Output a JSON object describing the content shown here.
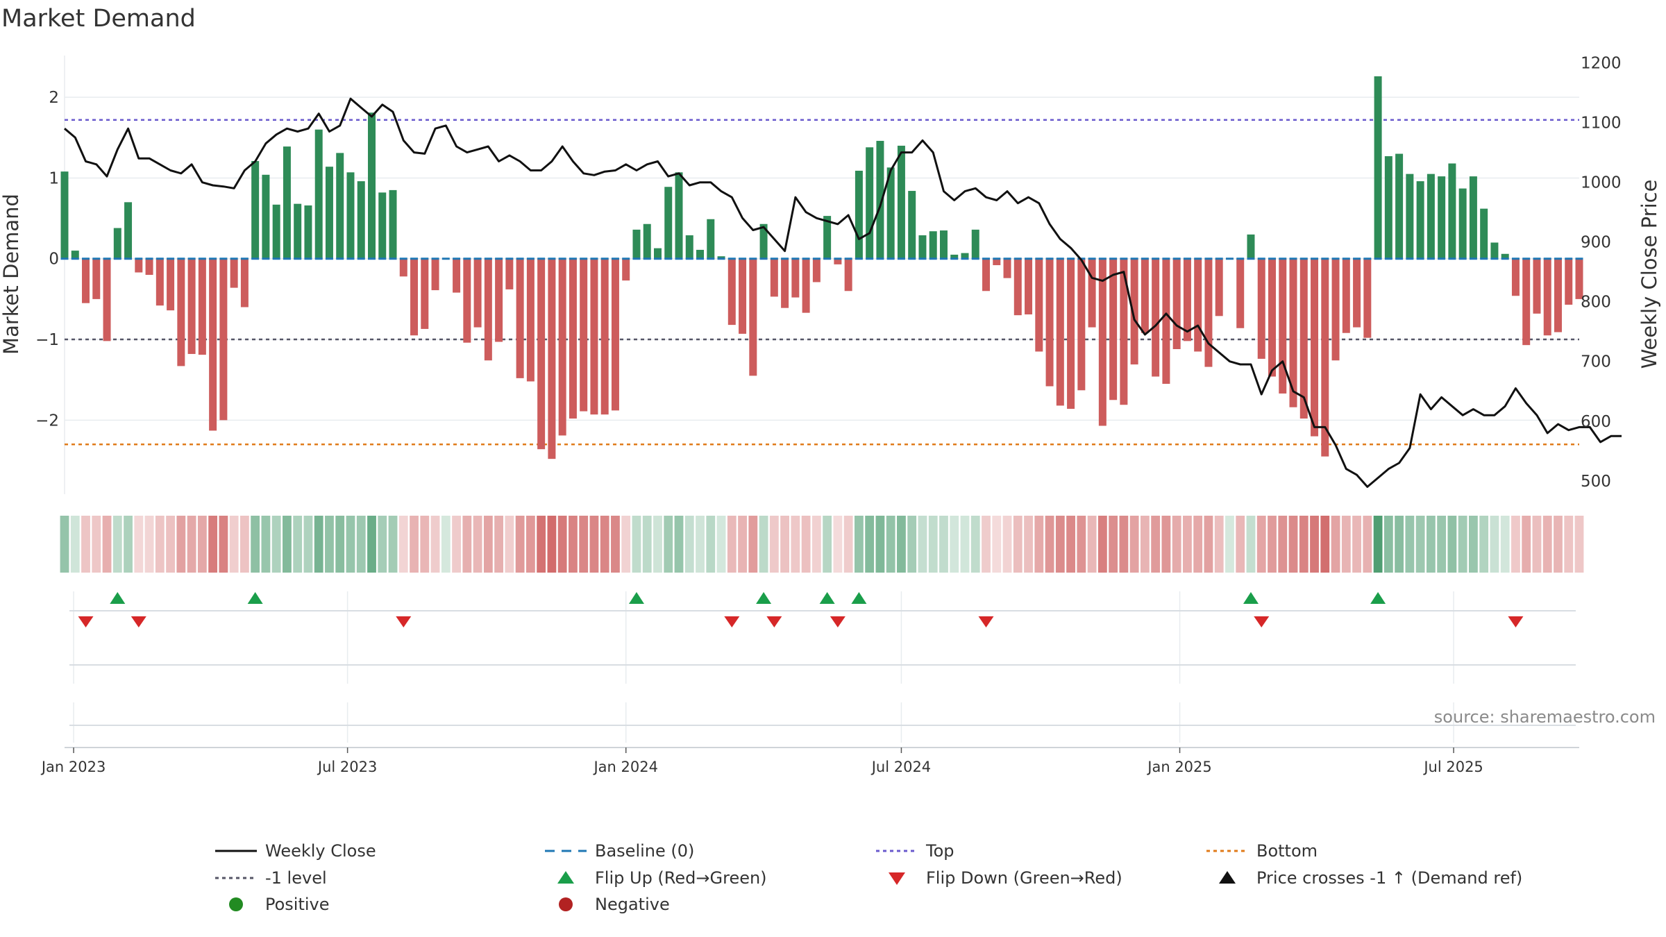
{
  "title": "Market Demand",
  "source": "source: sharemaestro.com",
  "chart_data": {
    "type": "bar",
    "title": "Market Demand",
    "ylabel": "Market Demand",
    "y2label": "Weekly Close Price",
    "ylim": [
      -2.9,
      2.5
    ],
    "y2lim": [
      480,
      1210
    ],
    "yticks": [
      "2",
      "1",
      "0",
      "−1",
      "−2"
    ],
    "y2ticks": [
      "1200",
      "1100",
      "1000",
      "900",
      "800",
      "700",
      "600",
      "500"
    ],
    "x_start": "2022-12-26",
    "x_end": "2025-09-22",
    "xticks": [
      {
        "date": "2023-01-01",
        "label": "Jan 2023"
      },
      {
        "date": "2023-07-01",
        "label": "Jul 2023"
      },
      {
        "date": "2024-01-01",
        "label": "Jan 2024"
      },
      {
        "date": "2024-07-01",
        "label": "Jul 2024"
      },
      {
        "date": "2025-01-01",
        "label": "Jan 2025"
      },
      {
        "date": "2025-07-01",
        "label": "Jul 2025"
      }
    ],
    "first_week": "2022-12-26",
    "top_level": 1.72,
    "bottom_level": -2.3,
    "neg_ref_level": -1.0,
    "colors": {
      "positive": "#2e8b57",
      "negative": "#cd5c5c",
      "price": "#111111",
      "top": "#6a5acd",
      "bottom": "#e07b1a",
      "neg_ref": "#555566",
      "baseline": "#1f77b4",
      "flip_up": "#1a9e4a",
      "flip_down": "#d62728"
    },
    "demand": [
      1.08,
      0.1,
      -0.55,
      -0.5,
      -1.02,
      0.38,
      0.7,
      -0.17,
      -0.2,
      -0.58,
      -0.64,
      -1.33,
      -1.18,
      -1.19,
      -2.13,
      -2.0,
      -0.36,
      -0.6,
      1.21,
      1.04,
      0.67,
      1.39,
      0.68,
      0.66,
      1.6,
      1.14,
      1.31,
      1.07,
      0.96,
      1.81,
      0.82,
      0.85,
      -0.22,
      -0.95,
      -0.87,
      -0.39,
      0,
      -0.42,
      -1.04,
      -0.85,
      -1.26,
      -1.03,
      -0.38,
      -1.48,
      -1.52,
      -2.36,
      -2.48,
      -2.19,
      -1.98,
      -1.89,
      -1.93,
      -1.93,
      -1.88,
      -0.27,
      0.36,
      0.43,
      0.13,
      0.89,
      1.07,
      0.29,
      0.11,
      0.49,
      0.03,
      -0.82,
      -0.93,
      -1.45,
      0.43,
      -0.47,
      -0.61,
      -0.48,
      -0.67,
      -0.29,
      0.53,
      -0.07,
      -0.4,
      1.09,
      1.38,
      1.46,
      1.13,
      1.4,
      0.84,
      0.29,
      0.34,
      0.35,
      0.05,
      0.07,
      0.36,
      -0.4,
      -0.08,
      -0.24,
      -0.7,
      -0.69,
      -1.15,
      -1.58,
      -1.82,
      -1.86,
      -1.63,
      -0.85,
      -2.07,
      -1.75,
      -1.81,
      -1.31,
      -0.92,
      -1.46,
      -1.55,
      -1.12,
      -1.02,
      -1.15,
      -1.34,
      -0.71,
      0,
      -0.86,
      0.3,
      -1.24,
      -1.46,
      -1.67,
      -1.84,
      -1.98,
      -2.2,
      -2.45,
      -1.26,
      -0.92,
      -0.85,
      -0.98,
      2.26,
      1.27,
      1.3,
      1.05,
      0.96,
      1.05,
      1.02,
      1.18,
      0.87,
      1.02,
      0.62,
      0.2,
      0.06,
      -0.46,
      -1.07,
      -0.68,
      -0.95,
      -0.91,
      -0.57,
      -0.5
    ],
    "price": [
      1090,
      1075,
      1035,
      1030,
      1010,
      1055,
      1090,
      1040,
      1040,
      1030,
      1020,
      1015,
      1030,
      1000,
      995,
      993,
      990,
      1020,
      1035,
      1065,
      1080,
      1090,
      1085,
      1090,
      1115,
      1085,
      1095,
      1140,
      1125,
      1110,
      1130,
      1118,
      1070,
      1050,
      1048,
      1090,
      1095,
      1060,
      1050,
      1055,
      1060,
      1035,
      1045,
      1035,
      1020,
      1020,
      1035,
      1060,
      1035,
      1015,
      1012,
      1018,
      1020,
      1030,
      1020,
      1030,
      1035,
      1010,
      1015,
      995,
      1000,
      1000,
      985,
      975,
      940,
      920,
      925,
      905,
      885,
      975,
      950,
      940,
      935,
      930,
      945,
      905,
      915,
      960,
      1020,
      1050,
      1050,
      1070,
      1050,
      985,
      970,
      985,
      990,
      975,
      970,
      985,
      965,
      975,
      965,
      930,
      905,
      890,
      870,
      840,
      835,
      845,
      850,
      770,
      745,
      760,
      780,
      760,
      750,
      760,
      730,
      715,
      700,
      695,
      695,
      645,
      685,
      700,
      650,
      640,
      590,
      590,
      560,
      520,
      510,
      490,
      505,
      520,
      530,
      555,
      645,
      620,
      640,
      625,
      610,
      620,
      610,
      610,
      625,
      655,
      630,
      610,
      580,
      595,
      585,
      590,
      590,
      565,
      575,
      575
    ]
  },
  "legend": [
    {
      "label": "Weekly Close",
      "symbol": "line-solid",
      "color": "#111111"
    },
    {
      "label": "Baseline (0)",
      "symbol": "line-dashed",
      "color": "#1f77b4"
    },
    {
      "label": "Top",
      "symbol": "line-dotted",
      "color": "#6a5acd"
    },
    {
      "label": "Bottom",
      "symbol": "line-dotted",
      "color": "#e07b1a"
    },
    {
      "label": "-1 level",
      "symbol": "line-dotted",
      "color": "#555566"
    },
    {
      "label": "Flip Up (Red→Green)",
      "symbol": "triangle-up",
      "color": "#1a9e4a"
    },
    {
      "label": "Flip Down (Green→Red)",
      "symbol": "triangle-down",
      "color": "#d62728"
    },
    {
      "label": "Price crosses -1 ↑ (Demand ref)",
      "symbol": "triangle-up",
      "color": "#111111"
    },
    {
      "label": "Positive",
      "symbol": "circle",
      "color": "#228b22"
    },
    {
      "label": "Negative",
      "symbol": "circle",
      "color": "#b22222"
    }
  ]
}
